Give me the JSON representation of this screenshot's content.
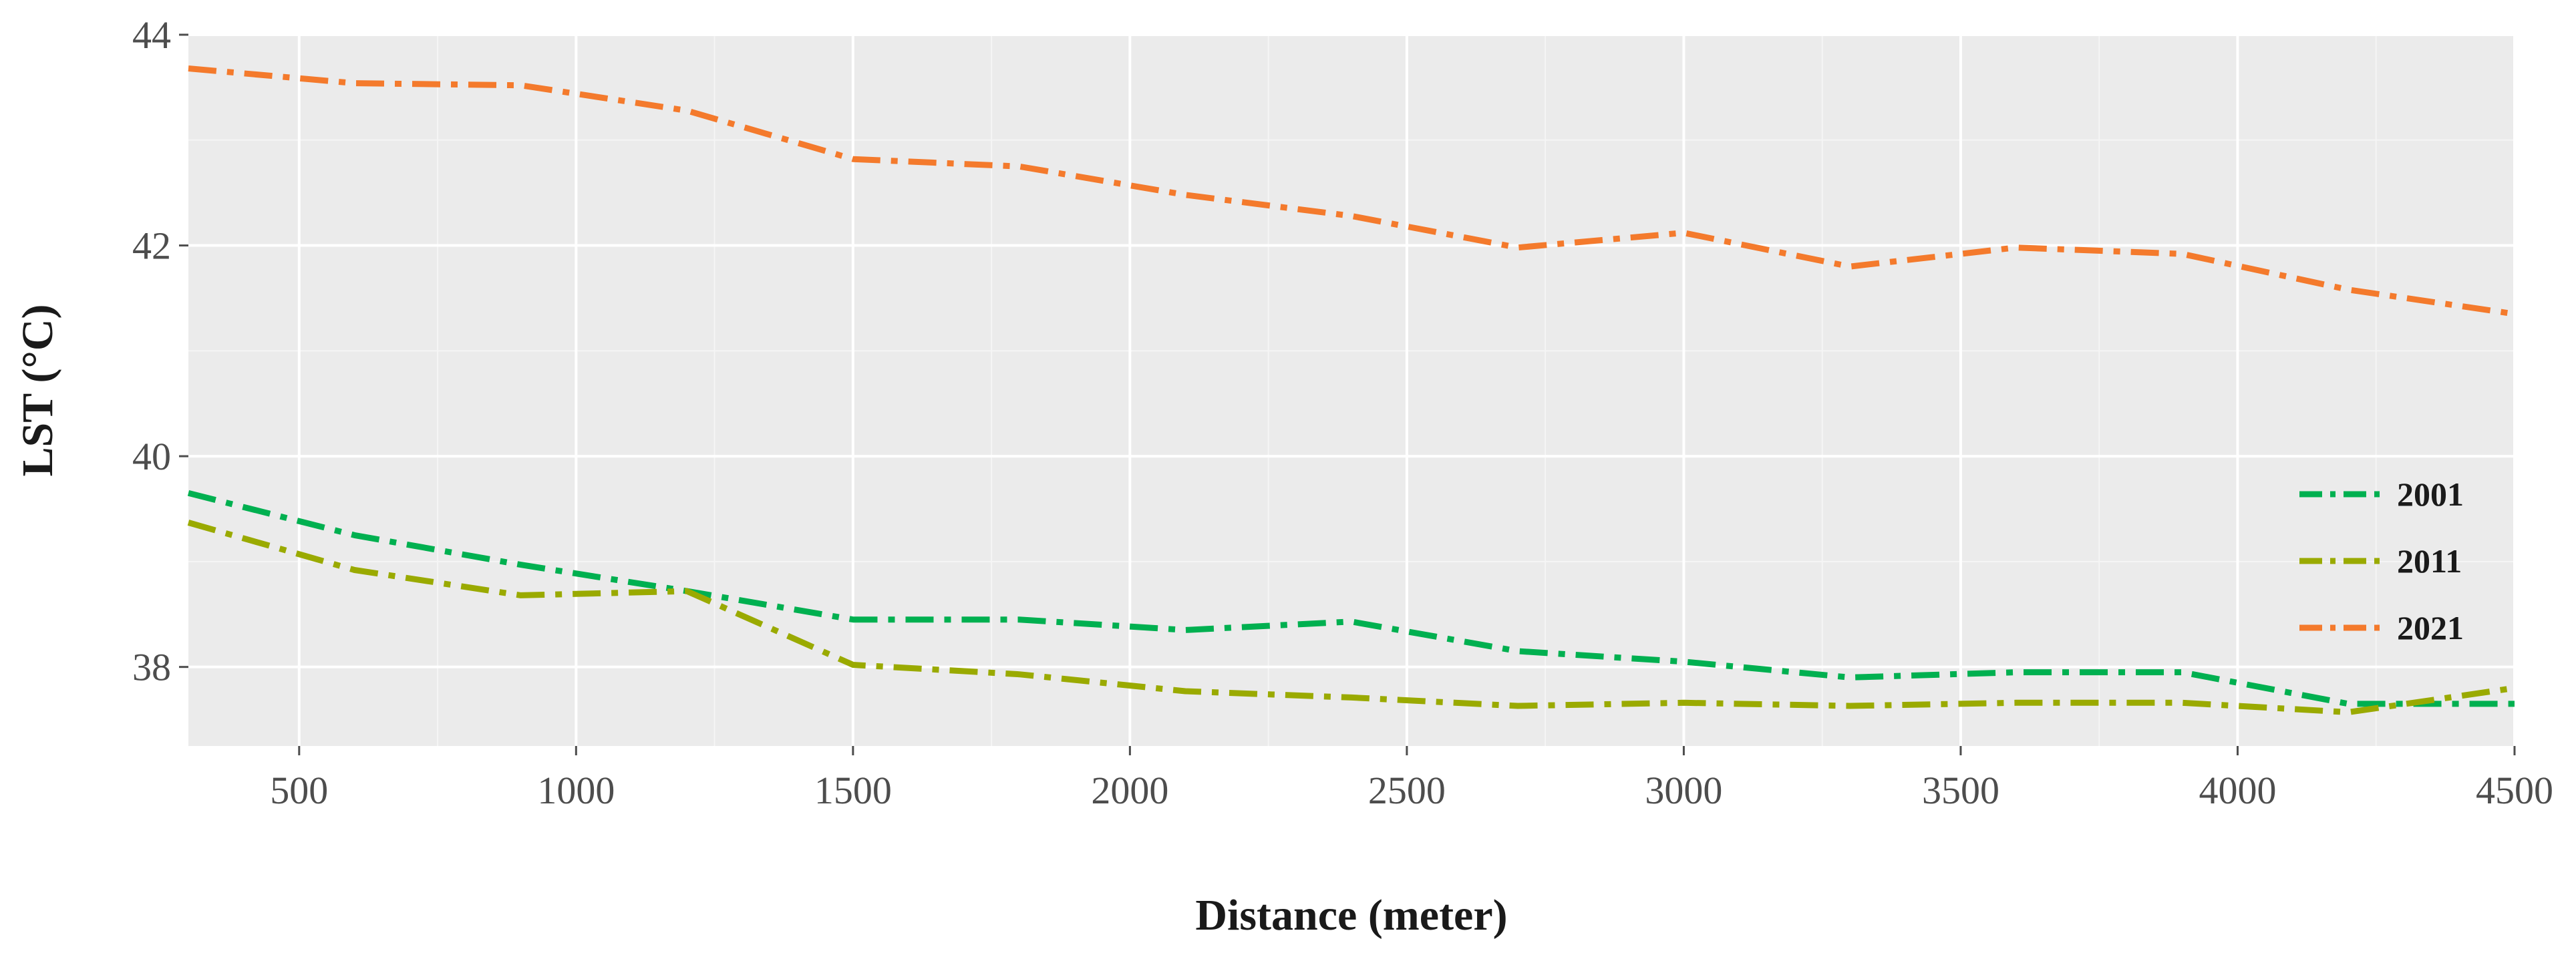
{
  "chart_data": {
    "type": "line",
    "title": "",
    "xlabel": "Distance (meter)",
    "ylabel": "LST (°C)",
    "xlim": [
      300,
      4500
    ],
    "ylim": [
      37.25,
      44
    ],
    "xticks": [
      500,
      1000,
      1500,
      2000,
      2500,
      3000,
      3500,
      4000,
      4500
    ],
    "yticks": [
      38,
      40,
      42,
      44
    ],
    "grid": true,
    "legend_position": "right",
    "x": [
      300,
      600,
      900,
      1200,
      1500,
      1800,
      2100,
      2400,
      2700,
      3000,
      3300,
      3600,
      3900,
      4200,
      4500
    ],
    "series": [
      {
        "name": "2001",
        "color": "#00b050",
        "values": [
          39.65,
          39.25,
          38.97,
          38.72,
          38.45,
          38.45,
          38.35,
          38.43,
          38.15,
          38.05,
          37.9,
          37.95,
          37.95,
          37.65,
          37.65
        ]
      },
      {
        "name": "2011",
        "color": "#9aaa00",
        "values": [
          39.37,
          38.92,
          38.68,
          38.72,
          38.02,
          37.93,
          37.77,
          37.71,
          37.63,
          37.66,
          37.63,
          37.66,
          37.66,
          37.57,
          37.8
        ]
      },
      {
        "name": "2021",
        "color": "#f47a2c",
        "values": [
          43.68,
          43.54,
          43.52,
          43.28,
          42.82,
          42.75,
          42.48,
          42.28,
          41.98,
          42.12,
          41.8,
          41.98,
          41.92,
          41.58,
          41.35
        ]
      }
    ]
  }
}
